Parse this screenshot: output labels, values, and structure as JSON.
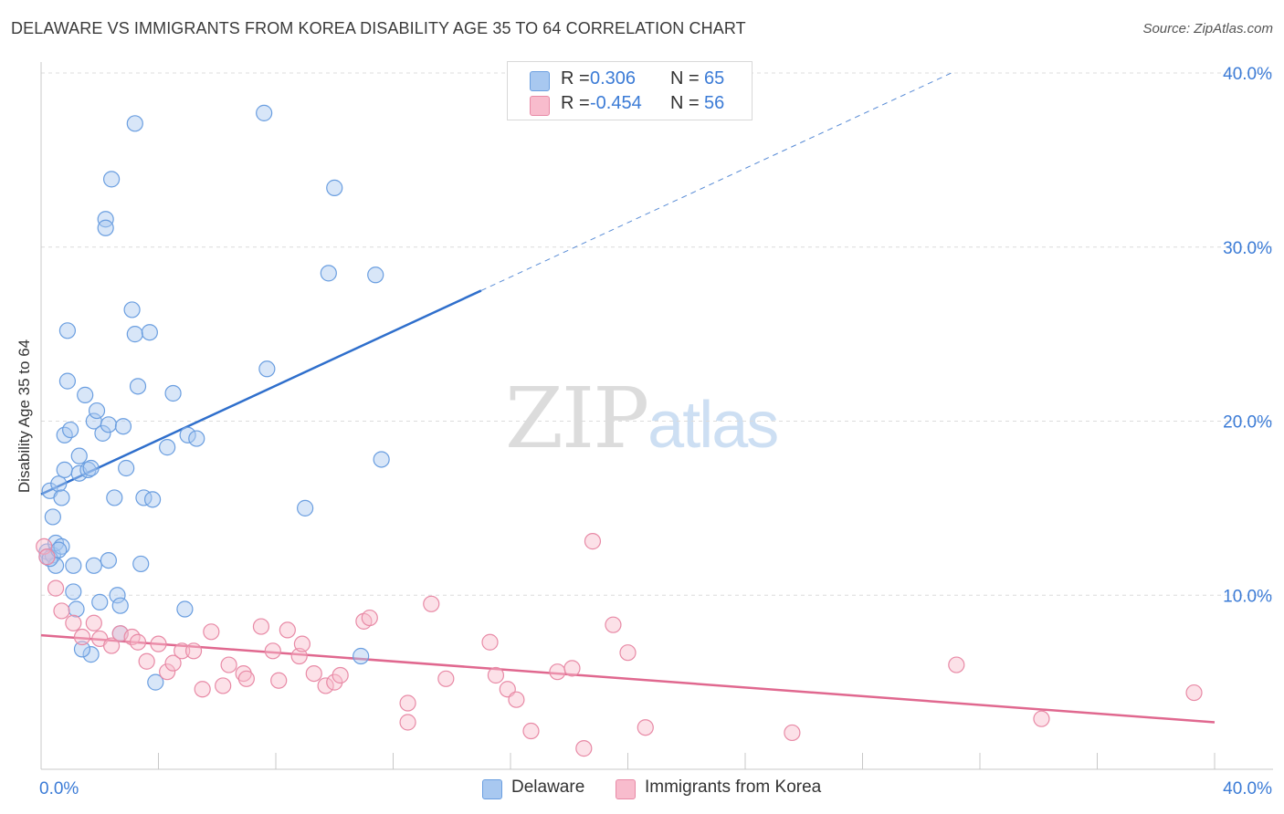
{
  "title": "DELAWARE VS IMMIGRANTS FROM KOREA DISABILITY AGE 35 TO 64 CORRELATION CHART",
  "source": "Source: ZipAtlas.com",
  "watermark": {
    "zip": "ZIP",
    "atlas": "atlas"
  },
  "legend": {
    "rows": [
      {
        "r_label": "R =",
        "r_value": "0.306",
        "n_label": "N =",
        "n_value": "65",
        "color": "#a8c8f0",
        "edge": "#6a9ee0"
      },
      {
        "r_label": "R =",
        "r_value": "-0.454",
        "n_label": "N =",
        "n_value": "56",
        "color": "#f8bccd",
        "edge": "#e88aa6"
      }
    ]
  },
  "bottom_legend": [
    {
      "label": "Delaware",
      "color": "#a8c8f0",
      "edge": "#6a9ee0"
    },
    {
      "label": "Immigrants from Korea",
      "color": "#f8bccd",
      "edge": "#e88aa6"
    }
  ],
  "chart_data": {
    "type": "scatter",
    "xlabel": "",
    "ylabel": "Disability Age 35 to 64",
    "xlim": [
      0,
      40
    ],
    "ylim": [
      0,
      40
    ],
    "x_tick_labels": [
      {
        "value": 0,
        "label": "0.0%"
      },
      {
        "value": 40,
        "label": "40.0%"
      }
    ],
    "x_minor_ticks": [
      0,
      4,
      8,
      12,
      16,
      20,
      24,
      28,
      32,
      36,
      40
    ],
    "y_ticks": [
      {
        "value": 10,
        "label": "10.0%"
      },
      {
        "value": 20,
        "label": "20.0%"
      },
      {
        "value": 30,
        "label": "30.0%"
      },
      {
        "value": 40,
        "label": "40.0%"
      }
    ],
    "grid": "horizontal dashed",
    "series": [
      {
        "name": "Delaware",
        "fill": "#a8c8f0",
        "edge": "#6a9ee0",
        "trend": {
          "x0": 0,
          "y0": 15.8,
          "x1": 15,
          "y1": 27.5,
          "extend_to_x": 31.1,
          "color": "#2f6fcc"
        },
        "points": [
          [
            0.2,
            12.5
          ],
          [
            0.2,
            12.2
          ],
          [
            0.3,
            16.0
          ],
          [
            0.4,
            12.3
          ],
          [
            0.4,
            14.5
          ],
          [
            0.5,
            13.0
          ],
          [
            0.5,
            11.7
          ],
          [
            0.6,
            16.4
          ],
          [
            0.7,
            15.6
          ],
          [
            0.7,
            12.8
          ],
          [
            0.8,
            17.2
          ],
          [
            0.8,
            19.2
          ],
          [
            0.9,
            25.2
          ],
          [
            0.9,
            22.3
          ],
          [
            1.0,
            19.5
          ],
          [
            1.1,
            10.2
          ],
          [
            1.1,
            11.7
          ],
          [
            1.2,
            9.2
          ],
          [
            1.3,
            18.0
          ],
          [
            1.3,
            17.0
          ],
          [
            1.5,
            21.5
          ],
          [
            1.6,
            17.2
          ],
          [
            1.7,
            17.3
          ],
          [
            1.7,
            6.6
          ],
          [
            1.8,
            11.7
          ],
          [
            1.8,
            20.0
          ],
          [
            1.9,
            20.6
          ],
          [
            2.1,
            19.3
          ],
          [
            2.2,
            31.6
          ],
          [
            2.2,
            31.1
          ],
          [
            2.3,
            19.8
          ],
          [
            2.3,
            12.0
          ],
          [
            2.4,
            33.9
          ],
          [
            2.5,
            15.6
          ],
          [
            2.6,
            10.0
          ],
          [
            2.7,
            9.4
          ],
          [
            2.7,
            7.8
          ],
          [
            2.8,
            19.7
          ],
          [
            2.9,
            17.3
          ],
          [
            3.1,
            26.4
          ],
          [
            3.2,
            37.1
          ],
          [
            3.2,
            25.0
          ],
          [
            3.3,
            22.0
          ],
          [
            3.4,
            11.8
          ],
          [
            3.5,
            15.6
          ],
          [
            3.7,
            25.1
          ],
          [
            3.8,
            15.5
          ],
          [
            3.9,
            5.0
          ],
          [
            4.3,
            18.5
          ],
          [
            4.5,
            21.6
          ],
          [
            4.9,
            9.2
          ],
          [
            5.0,
            19.2
          ],
          [
            5.3,
            19.0
          ],
          [
            7.6,
            37.7
          ],
          [
            7.7,
            23.0
          ],
          [
            9.0,
            15.0
          ],
          [
            9.8,
            28.5
          ],
          [
            10.0,
            33.4
          ],
          [
            10.9,
            6.5
          ],
          [
            11.4,
            28.4
          ],
          [
            11.6,
            17.8
          ],
          [
            0.3,
            12.1
          ],
          [
            0.6,
            12.6
          ],
          [
            1.4,
            6.9
          ],
          [
            2.0,
            9.6
          ]
        ]
      },
      {
        "name": "Immigrants from Korea",
        "fill": "#f8bccd",
        "edge": "#e88aa6",
        "trend": {
          "x0": 0,
          "y0": 7.7,
          "x1": 40,
          "y1": 2.7,
          "color": "#e0688f"
        },
        "points": [
          [
            0.1,
            12.8
          ],
          [
            0.2,
            12.2
          ],
          [
            0.5,
            10.4
          ],
          [
            0.7,
            9.1
          ],
          [
            1.1,
            8.4
          ],
          [
            1.4,
            7.6
          ],
          [
            1.8,
            8.4
          ],
          [
            2.0,
            7.5
          ],
          [
            2.4,
            7.1
          ],
          [
            2.7,
            7.8
          ],
          [
            3.1,
            7.6
          ],
          [
            3.3,
            7.3
          ],
          [
            3.6,
            6.2
          ],
          [
            4.0,
            7.2
          ],
          [
            4.3,
            5.6
          ],
          [
            4.5,
            6.1
          ],
          [
            4.8,
            6.8
          ],
          [
            5.2,
            6.8
          ],
          [
            5.5,
            4.6
          ],
          [
            5.8,
            7.9
          ],
          [
            6.2,
            4.8
          ],
          [
            6.4,
            6.0
          ],
          [
            6.9,
            5.5
          ],
          [
            7.0,
            5.2
          ],
          [
            7.5,
            8.2
          ],
          [
            7.9,
            6.8
          ],
          [
            8.1,
            5.1
          ],
          [
            8.4,
            8.0
          ],
          [
            8.8,
            6.5
          ],
          [
            8.9,
            7.2
          ],
          [
            9.3,
            5.5
          ],
          [
            9.7,
            4.8
          ],
          [
            10.0,
            5.0
          ],
          [
            10.2,
            5.4
          ],
          [
            11.0,
            8.5
          ],
          [
            11.2,
            8.7
          ],
          [
            12.5,
            3.8
          ],
          [
            12.5,
            2.7
          ],
          [
            13.3,
            9.5
          ],
          [
            13.8,
            5.2
          ],
          [
            15.3,
            7.3
          ],
          [
            15.5,
            5.4
          ],
          [
            15.9,
            4.6
          ],
          [
            16.2,
            4.0
          ],
          [
            16.7,
            2.2
          ],
          [
            17.6,
            5.6
          ],
          [
            18.1,
            5.8
          ],
          [
            18.5,
            1.2
          ],
          [
            18.8,
            13.1
          ],
          [
            19.5,
            8.3
          ],
          [
            20.0,
            6.7
          ],
          [
            20.6,
            2.4
          ],
          [
            25.6,
            2.1
          ],
          [
            31.2,
            6.0
          ],
          [
            34.1,
            2.9
          ],
          [
            39.3,
            4.4
          ]
        ]
      }
    ]
  }
}
